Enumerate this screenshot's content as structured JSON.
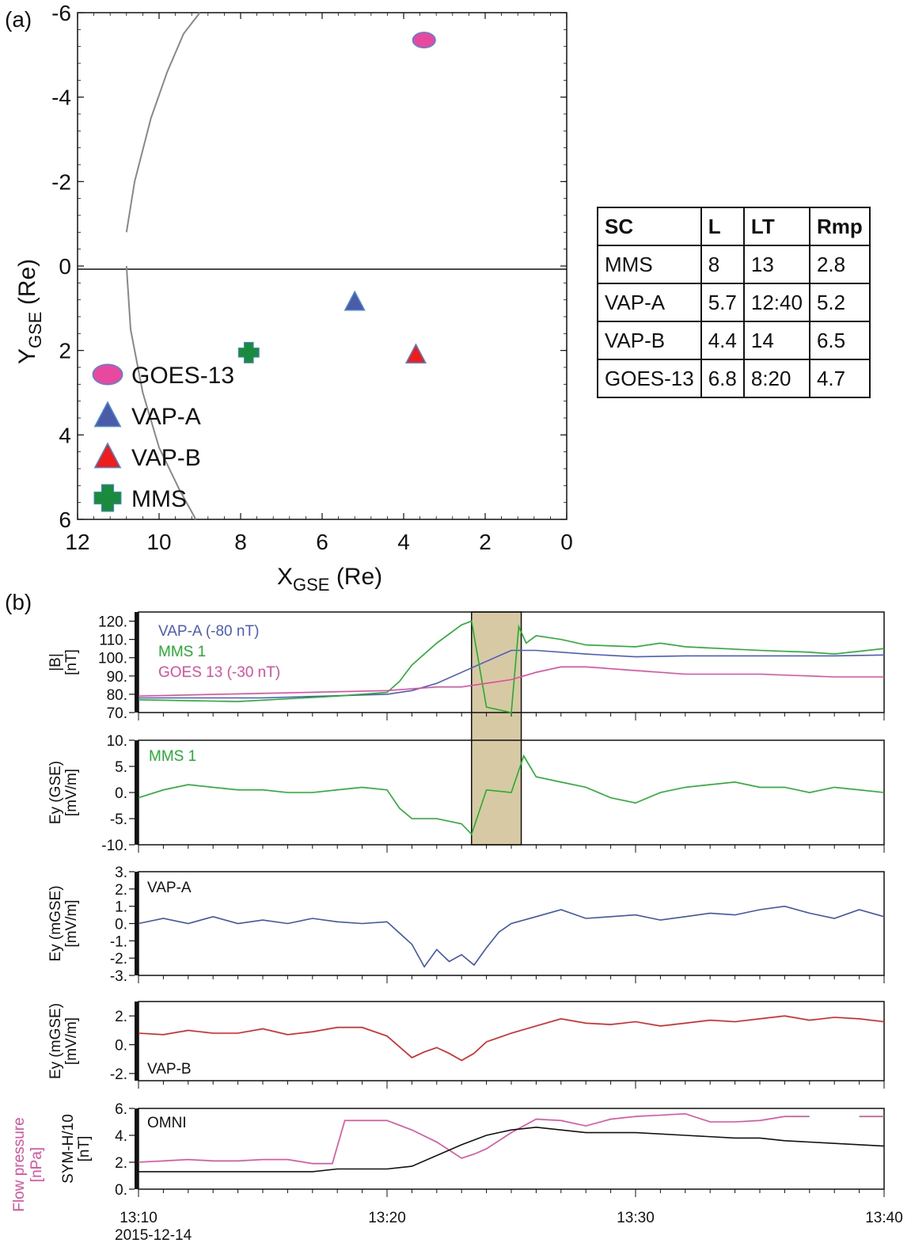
{
  "panel_a": {
    "label": "(a)",
    "chart_data": {
      "type": "scatter",
      "xlabel_main": "X",
      "xlabel_sub": "GSE",
      "xlabel_unit": " (Re)",
      "ylabel_main": "Y",
      "ylabel_sub": "GSE",
      "ylabel_unit": " (Re)",
      "xlim": [
        12,
        0
      ],
      "ylim": [
        -6,
        6
      ],
      "xticks": [
        "12",
        "10",
        "8",
        "6",
        "4",
        "2",
        "0"
      ],
      "yticks": [
        "-6",
        "-4",
        "-2",
        "0",
        "2",
        "4",
        "6"
      ],
      "points": [
        {
          "name": "GOES-13",
          "x": 3.5,
          "y": -5.35,
          "marker": "ellipse",
          "color": "#e8489e"
        },
        {
          "name": "VAP-A",
          "x": 5.2,
          "y": 0.85,
          "marker": "triangle",
          "color": "#4a5ca8"
        },
        {
          "name": "VAP-B",
          "x": 3.7,
          "y": 2.1,
          "marker": "triangle",
          "color": "#ee1c1c"
        },
        {
          "name": "MMS",
          "x": 7.8,
          "y": 2.05,
          "marker": "cross",
          "color": "#1a8a3c"
        }
      ],
      "legend": [
        {
          "label": "GOES-13",
          "marker": "ellipse",
          "color": "#e8489e"
        },
        {
          "label": "VAP-A",
          "marker": "triangle",
          "color": "#4a5ca8"
        },
        {
          "label": "VAP-B",
          "marker": "triangle",
          "color": "#ee1c1c"
        },
        {
          "label": "MMS",
          "marker": "cross",
          "color": "#1a8a3c"
        }
      ],
      "boundary_upper": [
        [
          10.8,
          -0.8
        ],
        [
          10.6,
          -2
        ],
        [
          10.2,
          -3.5
        ],
        [
          9.8,
          -4.6
        ],
        [
          9.4,
          -5.5
        ],
        [
          9.0,
          -6
        ]
      ],
      "boundary_lower": [
        [
          10.8,
          0
        ],
        [
          10.7,
          1.5
        ],
        [
          10.4,
          3
        ],
        [
          10.0,
          4.3
        ],
        [
          9.5,
          5.3
        ],
        [
          9.1,
          6
        ]
      ]
    }
  },
  "table": {
    "headers": [
      "SC",
      "L",
      "LT",
      "Rmp"
    ],
    "rows": [
      [
        "MMS",
        "8",
        "13",
        "2.8"
      ],
      [
        "VAP-A",
        "5.7",
        "12:40",
        "5.2"
      ],
      [
        "VAP-B",
        "4.4",
        "14",
        "6.5"
      ],
      [
        "GOES-13",
        "6.8",
        "8:20",
        "4.7"
      ]
    ]
  },
  "panel_b": {
    "label": "(b)",
    "x_range_minutes": [
      0,
      30
    ],
    "x_ticks": [
      "13:10",
      "13:20",
      "13:30",
      "13:40"
    ],
    "x_date": "2015-12-14",
    "highlight_minutes": [
      13.4,
      15.4
    ],
    "highlight_color": "#d6c9a3",
    "chart_data": [
      {
        "type": "line",
        "ylabel": [
          "|B|",
          "[nT]"
        ],
        "ylim": [
          70,
          125
        ],
        "yticks": [
          "70.",
          "80.",
          "90.",
          "100.",
          "110.",
          "120."
        ],
        "series": [
          {
            "name": "VAP-A (-80 nT)",
            "color": "#4a5cc4",
            "x": [
              0,
              5,
              10,
              11,
              12,
              13,
              14,
              15,
              16,
              18,
              20,
              22,
              25,
              28,
              30
            ],
            "y": [
              78,
              78,
              80,
              82,
              86,
              92,
              98,
              104,
              104,
              102,
              100.5,
              101,
              101,
              101,
              101.5
            ]
          },
          {
            "name": "MMS 1",
            "color": "#1fb02c",
            "x": [
              0,
              4,
              8,
              10,
              10.5,
              11,
              12,
              13,
              13.4,
              14,
              15,
              15.3,
              15.6,
              16,
              17,
              18,
              20,
              21,
              22,
              25,
              27,
              28,
              30
            ],
            "y": [
              77,
              76,
              79,
              81,
              87,
              96,
              108,
              118,
              120,
              73,
              70,
              117,
              108,
              112,
              110,
              107,
              106,
              108,
              106,
              104,
              103,
              102,
              105
            ]
          },
          {
            "name": "GOES 13 (-30 nT)",
            "color": "#e64aa0",
            "x": [
              0,
              10,
              12,
              13,
              14,
              15,
              16,
              17,
              18,
              20,
              22,
              25,
              28,
              30
            ],
            "y": [
              79,
              82,
              84,
              84,
              86,
              88,
              92,
              95,
              95,
              93,
              91,
              91,
              89.5,
              89.5
            ]
          }
        ]
      },
      {
        "type": "line",
        "ylabel": [
          "Ey (GSE)",
          "[mV/m]"
        ],
        "ylim": [
          -10,
          10
        ],
        "yticks": [
          "-10.",
          "-5.",
          "0.",
          "5.",
          "10."
        ],
        "series": [
          {
            "name": "MMS 1",
            "color": "#1fb02c",
            "x": [
              0,
              1,
              2,
              3,
              4,
              5,
              6,
              7,
              8,
              9,
              10,
              10.5,
              11,
              12,
              13,
              13.4,
              14,
              15,
              15.5,
              16,
              17,
              18,
              19,
              20,
              21,
              22,
              23,
              24,
              25,
              26,
              27,
              28,
              29,
              30
            ],
            "y": [
              -1,
              0.5,
              1.5,
              1,
              0.5,
              0.5,
              0,
              0,
              0.5,
              1,
              0.5,
              -3,
              -5,
              -5,
              -6,
              -8,
              0.5,
              0,
              7,
              3,
              2,
              1,
              -1,
              -2,
              0,
              1,
              1.5,
              2,
              1,
              1,
              0,
              1,
              0.5,
              0
            ]
          }
        ]
      },
      {
        "type": "line",
        "ylabel": [
          "Ey (mGSE)",
          "[mV/m]"
        ],
        "ylim": [
          -3,
          3
        ],
        "yticks": [
          "-3.",
          "-2.",
          "-1.",
          "0.",
          "1.",
          "2.",
          "3."
        ],
        "series": [
          {
            "name": "VAP-A",
            "color": "#3e55b0",
            "x": [
              0,
              1,
              2,
              3,
              4,
              5,
              6,
              7,
              8,
              9,
              10,
              11,
              11.5,
              12,
              12.5,
              13,
              13.5,
              14,
              14.5,
              15,
              16,
              17,
              18,
              19,
              20,
              21,
              22,
              23,
              24,
              25,
              26,
              27,
              28,
              29,
              30
            ],
            "y": [
              0,
              0.3,
              0,
              0.4,
              0,
              0.2,
              0,
              0.3,
              0.1,
              0,
              0.1,
              -1.2,
              -2.5,
              -1.5,
              -2.2,
              -1.8,
              -2.4,
              -1.4,
              -0.5,
              0,
              0.4,
              0.8,
              0.3,
              0.4,
              0.5,
              0.2,
              0.4,
              0.6,
              0.5,
              0.8,
              1,
              0.6,
              0.3,
              0.8,
              0.4
            ]
          }
        ]
      },
      {
        "type": "line",
        "ylabel": [
          "Ey (mGSE)",
          "[mV/m]"
        ],
        "ylim": [
          -2.5,
          3
        ],
        "yticks": [
          "-2.",
          "0.",
          "2."
        ],
        "series": [
          {
            "name": "VAP-B",
            "color": "#e8191b",
            "x": [
              0,
              1,
              2,
              3,
              4,
              5,
              6,
              7,
              8,
              9,
              10,
              11,
              11.5,
              12,
              12.5,
              13,
              13.5,
              14,
              15,
              16,
              17,
              18,
              19,
              20,
              21,
              22,
              23,
              24,
              25,
              26,
              27,
              28,
              29,
              30
            ],
            "y": [
              0.8,
              0.7,
              1,
              0.8,
              0.8,
              1.1,
              0.7,
              0.9,
              1.2,
              1.2,
              0.6,
              -0.9,
              -0.5,
              -0.2,
              -0.6,
              -1.1,
              -0.6,
              0.2,
              0.8,
              1.3,
              1.8,
              1.5,
              1.4,
              1.6,
              1.3,
              1.5,
              1.7,
              1.6,
              1.8,
              2,
              1.7,
              1.9,
              1.8,
              1.6
            ]
          }
        ]
      },
      {
        "type": "line",
        "ylabel": [
          "SYM-H/10",
          "[nT]"
        ],
        "ylabel2": [
          "Flow pressure",
          "[nPa]"
        ],
        "ylim": [
          0,
          6
        ],
        "yticks": [
          "0.",
          "2.",
          "4.",
          "6."
        ],
        "series": [
          {
            "name": "Flow pressure",
            "color": "#e64aa0",
            "x": [
              0,
              1,
              2,
              3,
              4,
              5,
              6,
              7,
              7.8,
              8.3,
              9,
              10,
              11,
              12,
              13,
              13.5,
              14,
              15,
              16,
              17,
              18,
              19,
              20,
              21,
              22,
              23,
              24,
              25,
              26,
              27
            ],
            "y": [
              2,
              2.1,
              2.2,
              2.1,
              2.1,
              2.2,
              2.2,
              1.9,
              1.9,
              5.1,
              5.1,
              5.1,
              4.4,
              3.5,
              2.3,
              2.6,
              3,
              4.2,
              5.2,
              5.1,
              4.7,
              5.2,
              5.4,
              5.5,
              5.6,
              5,
              5,
              5.1,
              5.4,
              5.4
            ]
          },
          {
            "name": "Flow pressure (cont.)",
            "color": "#e64aa0",
            "x": [
              29,
              30
            ],
            "y": [
              5.4,
              5.4
            ]
          },
          {
            "name": "SYM-H/10",
            "color": "#111111",
            "x": [
              0,
              7,
              8,
              10,
              11,
              13,
              14,
              15,
              16,
              18,
              20,
              22,
              24,
              25,
              26,
              28,
              30
            ],
            "y": [
              1.3,
              1.3,
              1.5,
              1.5,
              1.7,
              3.3,
              4,
              4.4,
              4.6,
              4.2,
              4.2,
              4,
              3.8,
              3.8,
              3.6,
              3.4,
              3.2
            ]
          }
        ]
      }
    ],
    "annotations": [
      {
        "panel": 0,
        "text": "VAP-A (-80 nT)",
        "color": "#4a5cc4"
      },
      {
        "panel": 0,
        "text": "MMS 1",
        "color": "#1fb02c"
      },
      {
        "panel": 0,
        "text": "GOES 13 (-30 nT)",
        "color": "#e64aa0"
      },
      {
        "panel": 1,
        "text": "MMS 1",
        "color": "#1fb02c"
      },
      {
        "panel": 2,
        "text": "VAP-A",
        "color": "#111111"
      },
      {
        "panel": 3,
        "text": "VAP-B",
        "color": "#111111"
      },
      {
        "panel": 4,
        "text": "OMNI",
        "color": "#111111"
      }
    ]
  }
}
